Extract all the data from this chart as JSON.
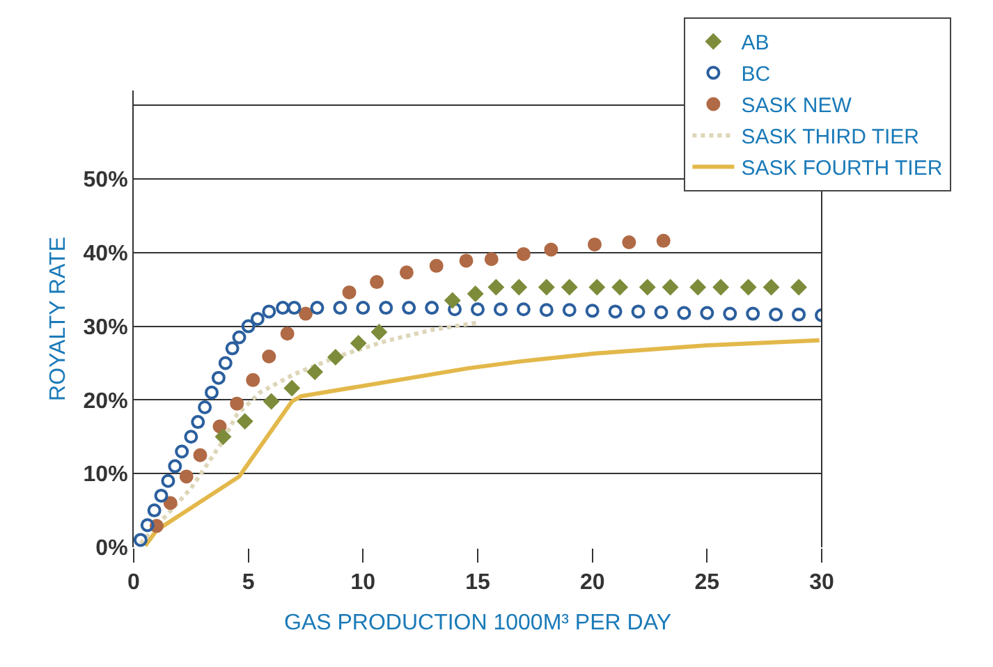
{
  "chart_data": {
    "type": "scatter",
    "xlabel": "GAS PRODUCTION 1000M³ PER DAY",
    "ylabel": "ROYALTY RATE",
    "xlim": [
      0,
      30
    ],
    "xticks": [
      0,
      5,
      10,
      15,
      20,
      25,
      30
    ],
    "ylim": [
      0,
      62
    ],
    "yticks": [
      {
        "value": 0,
        "label": "0%"
      },
      {
        "value": 10,
        "label": "10%"
      },
      {
        "value": 20,
        "label": "20%"
      },
      {
        "value": 30,
        "label": "30%"
      },
      {
        "value": 40,
        "label": "40%"
      },
      {
        "value": 50,
        "label": "50%"
      },
      {
        "value": 60,
        "label": null
      }
    ],
    "grid": "y",
    "legend": "top right",
    "series": [
      {
        "name": "AB",
        "marker": "diamond",
        "color": "#7d8c3a",
        "x": [
          3.9,
          4.85,
          6.0,
          6.9,
          7.9,
          8.8,
          9.8,
          10.7,
          13.9,
          14.9,
          15.8,
          16.8,
          18.0,
          19.0,
          20.2,
          21.2,
          22.4,
          23.4,
          24.6,
          25.6,
          26.8,
          27.8,
          29.0
        ],
        "values": [
          15,
          17.1,
          19.8,
          21.6,
          23.8,
          25.8,
          27.7,
          29.2,
          33.5,
          34.4,
          35.3,
          35.3,
          35.3,
          35.3,
          35.3,
          35.3,
          35.3,
          35.3,
          35.3,
          35.3,
          35.3,
          35.3,
          35.3
        ]
      },
      {
        "name": "BC",
        "marker": "circle-open",
        "color": "#2b5f9e",
        "x": [
          0.3,
          0.6,
          0.9,
          1.2,
          1.5,
          1.8,
          2.1,
          2.5,
          2.8,
          3.1,
          3.4,
          3.7,
          4.0,
          4.3,
          4.6,
          5.0,
          5.4,
          5.9,
          6.5,
          7,
          8,
          9,
          10,
          11,
          12,
          13,
          14,
          15,
          16,
          17,
          18,
          19,
          20,
          21,
          22,
          23,
          24,
          25,
          26,
          27,
          28,
          29,
          30
        ],
        "values": [
          1,
          3,
          5,
          7,
          9,
          11,
          13,
          15,
          17,
          19,
          21,
          23,
          25,
          27,
          28.5,
          30,
          31,
          32,
          32.5,
          32.5,
          32.5,
          32.5,
          32.5,
          32.5,
          32.5,
          32.5,
          32.3,
          32.3,
          32.3,
          32.3,
          32.2,
          32.2,
          32.1,
          32,
          32,
          31.9,
          31.8,
          31.8,
          31.7,
          31.7,
          31.6,
          31.6,
          31.5
        ]
      },
      {
        "name": "SASK NEW",
        "marker": "circle",
        "color": "#b06a45",
        "x": [
          1.0,
          1.6,
          2.3,
          2.9,
          3.75,
          4.5,
          5.2,
          5.9,
          6.7,
          7.5,
          9.4,
          10.6,
          11.9,
          13.2,
          14.5,
          15.6,
          17.0,
          18.2,
          20.1,
          21.6,
          23.1
        ],
        "values": [
          2.9,
          6,
          9.6,
          12.5,
          16.4,
          19.5,
          22.7,
          25.9,
          29,
          31.7,
          34.6,
          36,
          37.3,
          38.2,
          38.9,
          39.1,
          39.8,
          40.4,
          41.1,
          41.4,
          41.6
        ]
      },
      {
        "name": "SASK THIRD TIER",
        "type": "line",
        "line_style": "dotted",
        "color": "#ddd6b8",
        "x": [
          0.3,
          2.5,
          3.8,
          4.5,
          5.5,
          7,
          9,
          11,
          13,
          15
        ],
        "values": [
          0.5,
          8,
          14,
          18,
          21,
          23.5,
          26,
          28,
          29.5,
          30.5
        ]
      },
      {
        "name": "SASK FOURTH TIER",
        "type": "line",
        "line_style": "solid",
        "color": "#e3b84a",
        "x": [
          0.5,
          1.0,
          4.6,
          6.9,
          7.3,
          14.6,
          16.8,
          20.1,
          25,
          29.9
        ],
        "values": [
          0.2,
          2.3,
          9.6,
          19.8,
          20.5,
          24.3,
          25.2,
          26.3,
          27.4,
          28.1
        ]
      }
    ]
  }
}
